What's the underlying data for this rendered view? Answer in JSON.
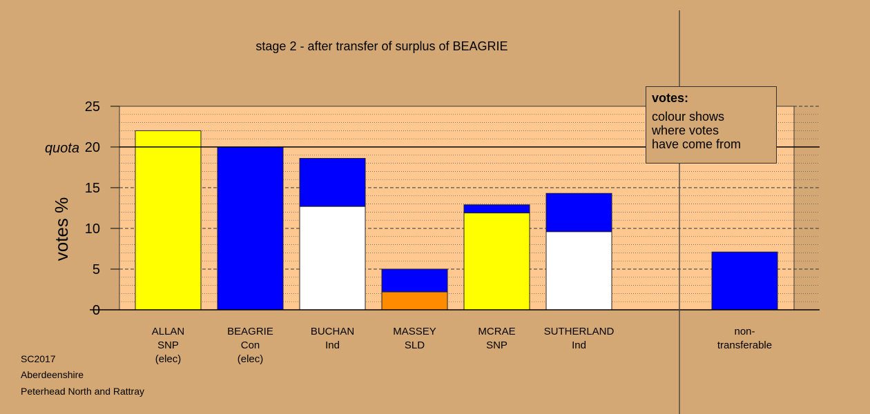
{
  "chart_data": {
    "type": "bar",
    "title": "stage 2 - after transfer of surplus of BEAGRIE",
    "ylabel": "votes %",
    "ylim": [
      0,
      25
    ],
    "yticks": [
      0,
      5,
      10,
      15,
      20,
      25
    ],
    "quota": 20,
    "quota_label": "quota",
    "grid": true,
    "legend_position": "top-right",
    "bars": [
      {
        "label_lines": [
          "ALLAN",
          "SNP",
          "(elec)"
        ],
        "segments": [
          {
            "value": 22.0,
            "color": "#ffff00"
          }
        ]
      },
      {
        "label_lines": [
          "BEAGRIE",
          "Con",
          "(elec)"
        ],
        "segments": [
          {
            "value": 20.0,
            "color": "#0000ff"
          }
        ]
      },
      {
        "label_lines": [
          "BUCHAN",
          "Ind"
        ],
        "segments": [
          {
            "value": 12.7,
            "color": "#ffffff"
          },
          {
            "value": 5.9,
            "color": "#0000ff"
          }
        ]
      },
      {
        "label_lines": [
          "MASSEY",
          "SLD"
        ],
        "segments": [
          {
            "value": 2.2,
            "color": "#ff8c00"
          },
          {
            "value": 2.8,
            "color": "#0000ff"
          }
        ]
      },
      {
        "label_lines": [
          "MCRAE",
          "SNP"
        ],
        "segments": [
          {
            "value": 11.9,
            "color": "#ffff00"
          },
          {
            "value": 1.0,
            "color": "#0000ff"
          }
        ]
      },
      {
        "label_lines": [
          "SUTHERLAND",
          "Ind"
        ],
        "segments": [
          {
            "value": 9.6,
            "color": "#ffffff"
          },
          {
            "value": 4.7,
            "color": "#0000ff"
          }
        ]
      }
    ],
    "nontransferable": {
      "label_lines": [
        "non-",
        "transferable"
      ],
      "segments": [
        {
          "value": 7.1,
          "color": "#0000ff"
        }
      ]
    }
  },
  "legend": {
    "title": "votes:",
    "lines": [
      "colour shows",
      "where votes",
      "have come from"
    ]
  },
  "footer": {
    "line1": "SC2017",
    "line2": "Aberdeenshire",
    "line3": "Peterhead North and Rattray"
  },
  "colors": {
    "background": "#d4a874",
    "plot_background": "#ffc890"
  }
}
